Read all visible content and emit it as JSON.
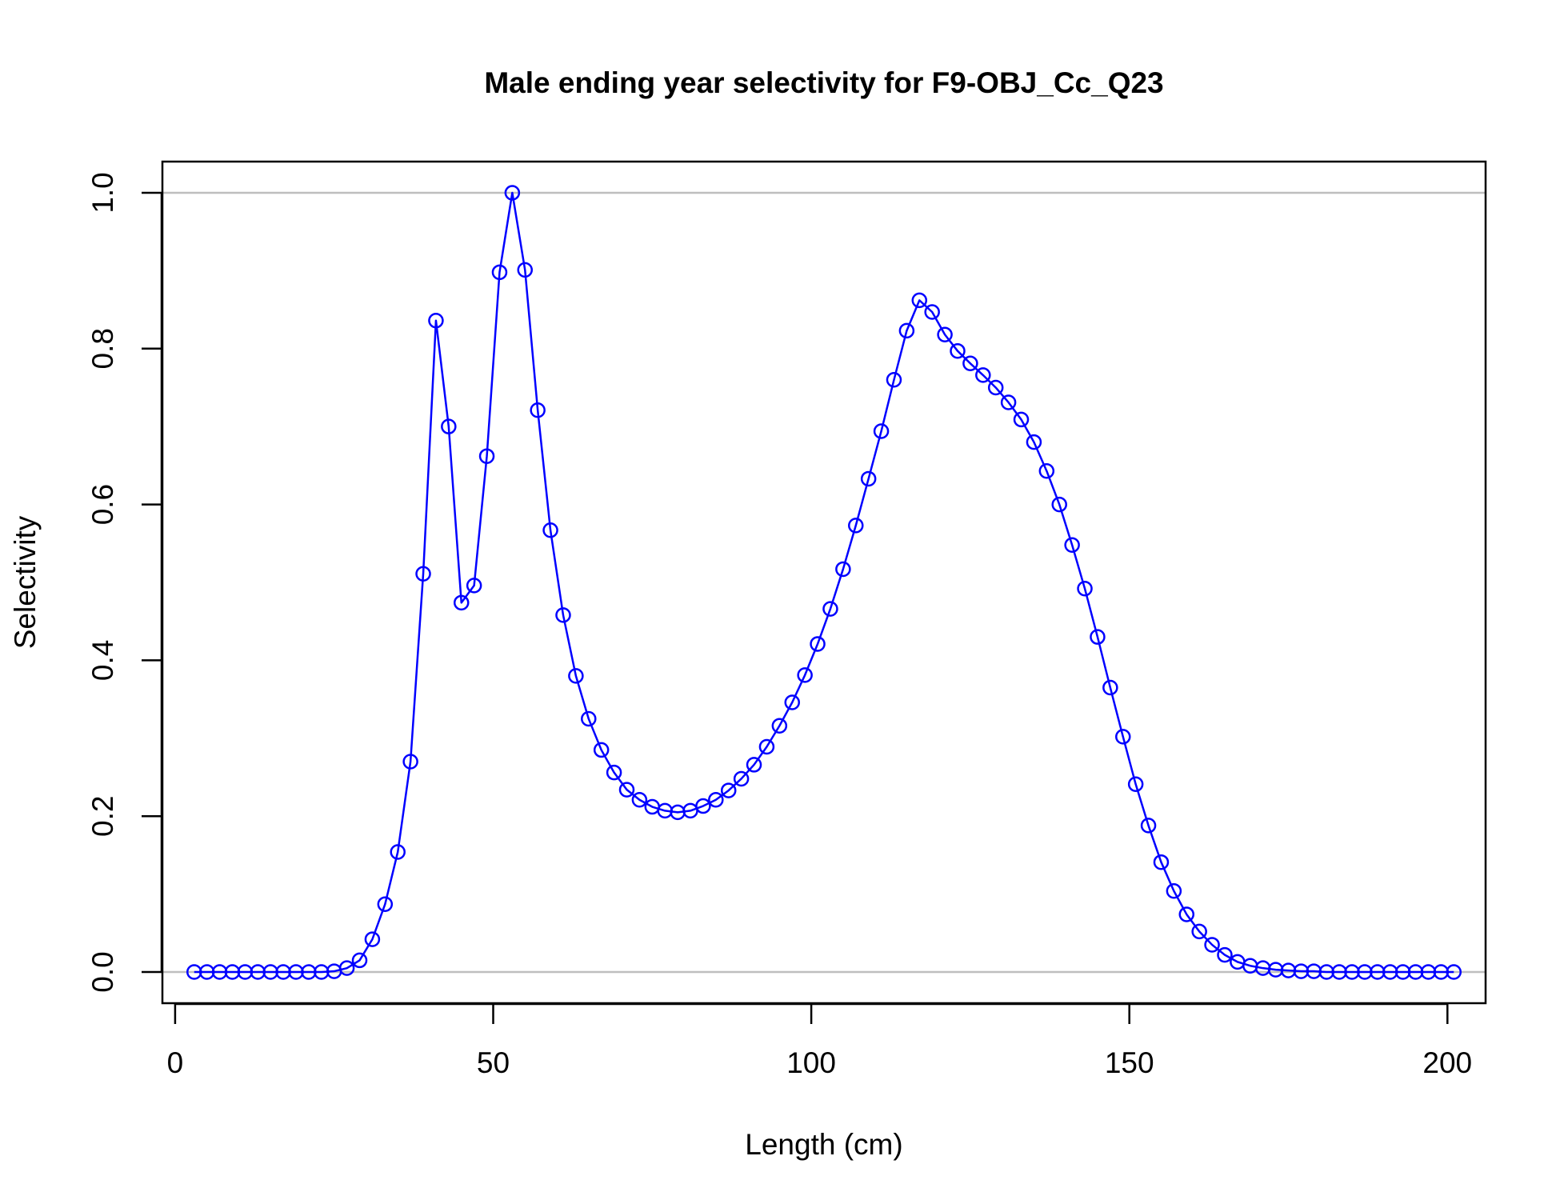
{
  "chart_data": {
    "type": "line",
    "title": "Male ending year selectivity for F9-OBJ_Cc_Q23",
    "xlabel": "Length (cm)",
    "ylabel": "Selectivity",
    "xlim": [
      -2,
      206
    ],
    "ylim": [
      -0.04,
      1.04
    ],
    "x_ticks": [
      0,
      50,
      100,
      150,
      200
    ],
    "x_tick_labels": [
      "0",
      "50",
      "100",
      "150",
      "200"
    ],
    "y_ticks": [
      0,
      0.2,
      0.4,
      0.6,
      0.8,
      1
    ],
    "y_tick_labels": [
      "0.0",
      "0.2",
      "0.4",
      "0.6",
      "0.8",
      "1.0"
    ],
    "reference_lines": [
      0,
      1
    ],
    "reference_line_color": "#bebebe",
    "grid": false,
    "series": [
      {
        "color": "#0000ff",
        "marker": "open-circle",
        "x": [
          3,
          5,
          7,
          9,
          11,
          13,
          15,
          17,
          19,
          21,
          23,
          25,
          27,
          29,
          31,
          33,
          35,
          37,
          39,
          41,
          43,
          45,
          47,
          49,
          51,
          53,
          55,
          57,
          59,
          61,
          63,
          65,
          67,
          69,
          71,
          73,
          75,
          77,
          79,
          81,
          83,
          85,
          87,
          89,
          91,
          93,
          95,
          97,
          99,
          101,
          103,
          105,
          107,
          109,
          111,
          113,
          115,
          117,
          119,
          121,
          123,
          125,
          127,
          129,
          131,
          133,
          135,
          137,
          139,
          141,
          143,
          145,
          147,
          149,
          151,
          153,
          155,
          157,
          159,
          161,
          163,
          165,
          167,
          169,
          171,
          173,
          175,
          177,
          179,
          181,
          183,
          185,
          187,
          189,
          191,
          193,
          195,
          197,
          199,
          201
        ],
        "y": [
          0,
          0,
          0,
          0,
          0,
          0,
          0,
          0,
          0,
          0,
          0,
          0.001,
          0.005,
          0.015,
          0.042,
          0.087,
          0.154,
          0.27,
          0.511,
          0.836,
          0.7,
          0.474,
          0.496,
          0.662,
          0.898,
          1.0,
          0.901,
          0.721,
          0.567,
          0.458,
          0.38,
          0.325,
          0.285,
          0.256,
          0.234,
          0.221,
          0.212,
          0.207,
          0.205,
          0.207,
          0.213,
          0.221,
          0.233,
          0.248,
          0.266,
          0.289,
          0.316,
          0.346,
          0.381,
          0.421,
          0.466,
          0.517,
          0.573,
          0.633,
          0.694,
          0.76,
          0.823,
          0.862,
          0.847,
          0.818,
          0.797,
          0.781,
          0.766,
          0.75,
          0.731,
          0.709,
          0.68,
          0.643,
          0.6,
          0.548,
          0.492,
          0.43,
          0.365,
          0.302,
          0.241,
          0.188,
          0.141,
          0.104,
          0.074,
          0.052,
          0.035,
          0.022,
          0.013,
          0.008,
          0.005,
          0.003,
          0.002,
          0.001,
          0.001,
          0,
          0,
          0,
          0,
          0,
          0,
          0,
          0,
          0,
          0,
          0
        ]
      }
    ]
  }
}
